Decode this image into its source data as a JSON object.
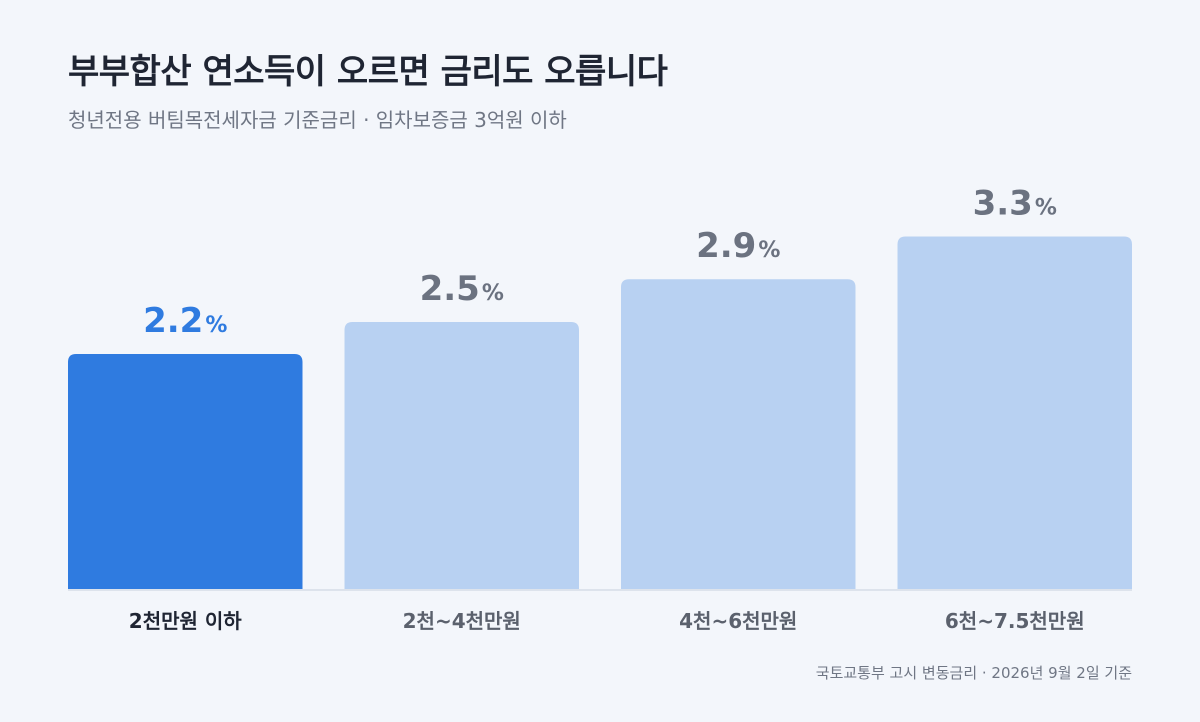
{
  "title": "부부합산 연소득이 오르면 금리도 오릅니다",
  "subtitle": "청년전용 버팀목전세자금 기준금리 · 임차보증금 3억원 이하",
  "source": "국토교통부 고시 변동금리 · 2026년 9월 2일 기준",
  "colors": {
    "highlight_bar": "#2f7be0",
    "bar": "#b8d1f2",
    "highlight_label": "#2f7be0",
    "label": "#6b7280",
    "axis": "#dde3ec",
    "highlight_category": "#1f2533",
    "category": "#5b616d"
  },
  "chart_data": {
    "type": "bar",
    "categories": [
      "2천만원 이하",
      "2천~4천만원",
      "4천~6천만원",
      "6천~7.5천만원"
    ],
    "values": [
      2.2,
      2.5,
      2.9,
      3.3
    ],
    "data_labels": [
      "2.2",
      "2.5",
      "2.9",
      "3.3"
    ],
    "unit": "%",
    "highlight_index": 0,
    "ylim": [
      0,
      4.4
    ],
    "grid": false,
    "legend": "none"
  }
}
